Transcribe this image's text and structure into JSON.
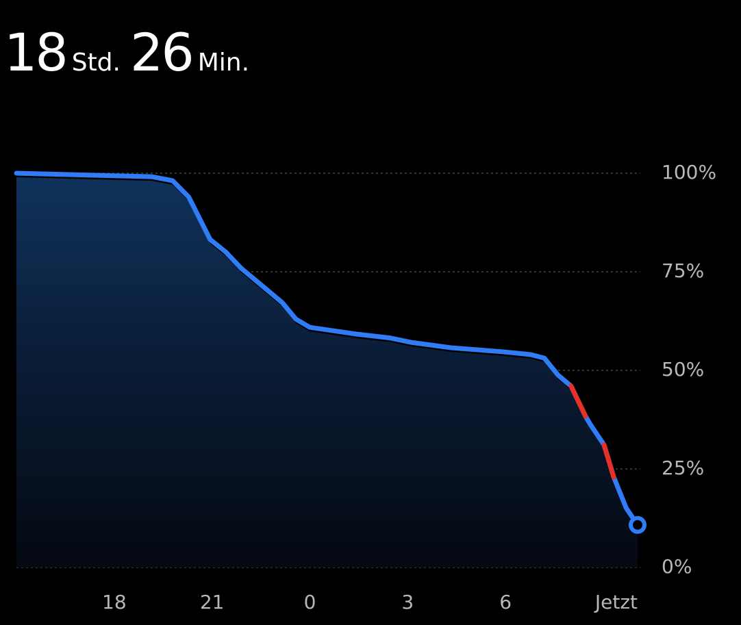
{
  "header": {
    "hours": "18",
    "hours_unit": "Std.",
    "minutes": "26",
    "minutes_unit": "Min."
  },
  "chart_data": {
    "type": "line",
    "x": [
      15,
      19.16,
      19.79,
      20.29,
      20.94,
      21.42,
      21.89,
      22.47,
      23.15,
      23.57,
      24.0,
      25.42,
      26.47,
      27.1,
      28.36,
      29.93,
      30.77,
      31.19,
      31.61,
      32.01,
      32.45,
      32.6,
      33.02,
      33.32,
      33.7,
      34.05
    ],
    "series": [
      {
        "color": "#2f7cf6",
        "values": [
          100,
          99.1,
          98.1,
          93.9,
          83.2,
          80.0,
          75.9,
          71.9,
          67.2,
          63.0,
          60.9,
          59.2,
          58.2,
          57.1,
          55.7,
          54.7,
          54.0,
          53.1,
          48.8,
          46.0,
          38.4,
          36.3,
          31.1,
          22.9,
          15.1,
          10.8
        ]
      },
      {
        "color": "#e8302a",
        "values": [
          null,
          null,
          null,
          null,
          null,
          null,
          null,
          null,
          null,
          null,
          null,
          null,
          null,
          null,
          null,
          null,
          null,
          null,
          null,
          46.0,
          38.4,
          null,
          31.1,
          22.9,
          null,
          null
        ]
      }
    ],
    "xlim": [
      15,
      34.05
    ],
    "xticks": [
      18,
      21,
      {
        "value": 24,
        "label": "0"
      },
      {
        "value": 27,
        "label": "3"
      },
      {
        "value": 30,
        "label": "6"
      },
      {
        "value": 34.05,
        "label": "Jetzt"
      }
    ],
    "ylim": [
      0,
      100
    ],
    "yticks": [
      {
        "value": 0,
        "label": "0%"
      },
      {
        "value": 25,
        "label": "25%"
      },
      {
        "value": 50,
        "label": "50%"
      },
      {
        "value": 75,
        "label": "75%"
      },
      {
        "value": 100,
        "label": "100%"
      }
    ],
    "grid": true
  }
}
